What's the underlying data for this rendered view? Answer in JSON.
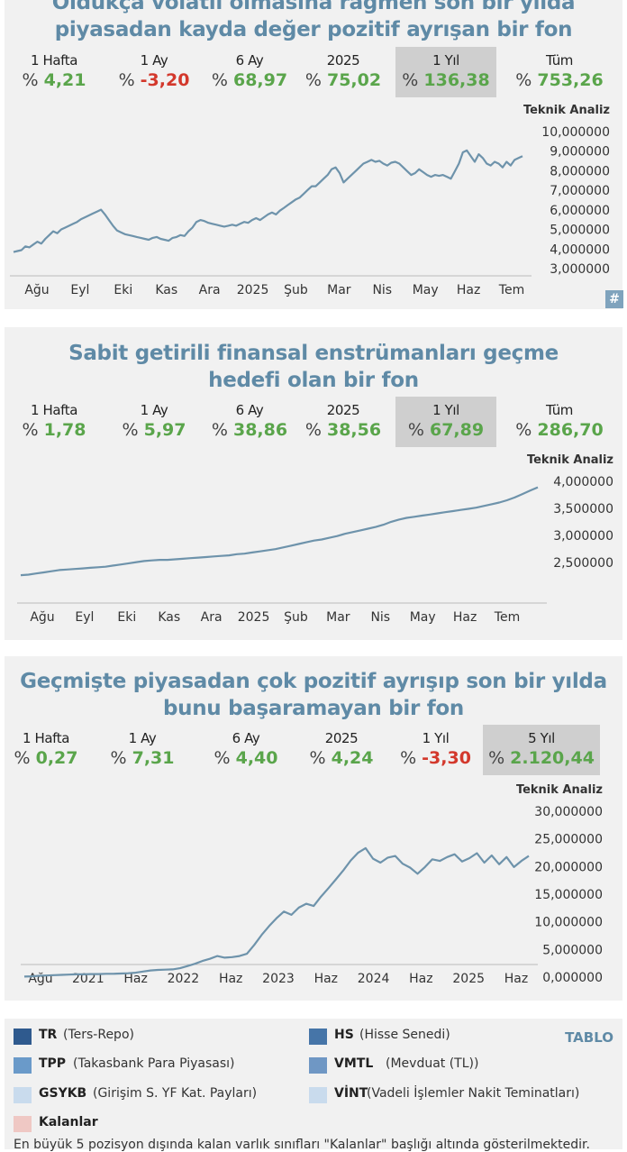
{
  "panels": [
    {
      "title_lines": [
        "Oldukça volatil olmasına rağmen son bir yılda",
        "piyasadan kayda değer pozitif ayrışan bir fon"
      ],
      "stats": [
        {
          "label": "1 Hafta",
          "pct": "%",
          "value": "4,21",
          "tone": "pos",
          "highlight": false
        },
        {
          "label": "1 Ay",
          "pct": "%",
          "value": "-3,20",
          "tone": "neg",
          "highlight": false
        },
        {
          "label": "6 Ay",
          "pct": "%",
          "value": "68,97",
          "tone": "pos",
          "highlight": false
        },
        {
          "label": "2025",
          "pct": "%",
          "value": "75,02",
          "tone": "pos",
          "highlight": false
        },
        {
          "label": "1 Yıl",
          "pct": "%",
          "value": "136,38",
          "tone": "pos",
          "highlight": true
        },
        {
          "label": "Tüm",
          "pct": "%",
          "value": "753,26",
          "tone": "pos",
          "highlight": false
        }
      ],
      "badge": "#"
    },
    {
      "title_lines": [
        "Sabit getirili finansal enstrümanları geçme",
        "hedefi olan bir fon"
      ],
      "stats": [
        {
          "label": "1 Hafta",
          "pct": "%",
          "value": "1,78",
          "tone": "pos",
          "highlight": false
        },
        {
          "label": "1 Ay",
          "pct": "%",
          "value": "5,97",
          "tone": "pos",
          "highlight": false
        },
        {
          "label": "6 Ay",
          "pct": "%",
          "value": "38,86",
          "tone": "pos",
          "highlight": false
        },
        {
          "label": "2025",
          "pct": "%",
          "value": "38,56",
          "tone": "pos",
          "highlight": false
        },
        {
          "label": "1 Yıl",
          "pct": "%",
          "value": "67,89",
          "tone": "pos",
          "highlight": true
        },
        {
          "label": "Tüm",
          "pct": "%",
          "value": "286,70",
          "tone": "pos",
          "highlight": false
        }
      ]
    },
    {
      "title_lines": [
        "Geçmişte piyasadan çok pozitif ayrışıp son bir yılda",
        "bunu başaramayan bir fon"
      ],
      "stats": [
        {
          "label": "1 Hafta",
          "pct": "%",
          "value": "0,27",
          "tone": "pos",
          "highlight": false
        },
        {
          "label": "1 Ay",
          "pct": "%",
          "value": "7,31",
          "tone": "pos",
          "highlight": false
        },
        {
          "label": "6 Ay",
          "pct": "%",
          "value": "4,40",
          "tone": "pos",
          "highlight": false
        },
        {
          "label": "2025",
          "pct": "%",
          "value": "4,24",
          "tone": "pos",
          "highlight": false
        },
        {
          "label": "1 Yıl",
          "pct": "%",
          "value": "-3,30",
          "tone": "neg",
          "highlight": false
        },
        {
          "label": "5 Yıl",
          "pct": "%",
          "value": "2.120,44",
          "tone": "pos",
          "highlight": true
        }
      ]
    }
  ],
  "colors": {
    "line": "#6e93ab",
    "title": "#5f8aa6",
    "positive": "#5aa54b",
    "negative": "#d3382c",
    "panel_bg": "#f1f1f1",
    "highlight": "#cfcfcf"
  },
  "chart_data": [
    {
      "type": "line",
      "title": "",
      "axis_title": "Teknik Analiz",
      "x_labels": [
        "Ağu",
        "Eyl",
        "Eki",
        "Kas",
        "Ara",
        "2025",
        "Şub",
        "Mar",
        "Nis",
        "May",
        "Haz",
        "Tem"
      ],
      "y_ticks": [
        "10,000000",
        "9,000000",
        "8,000000",
        "7,000000",
        "6,000000",
        "5,000000",
        "4,000000",
        "3,000000"
      ],
      "ylim": [
        3,
        10
      ],
      "grid": false,
      "series": [
        {
          "values": [
            3.5,
            3.55,
            3.6,
            3.8,
            3.75,
            3.9,
            4.05,
            3.95,
            4.2,
            4.4,
            4.6,
            4.5,
            4.7,
            4.8,
            4.9,
            5.0,
            5.1,
            5.25,
            5.35,
            5.45,
            5.55,
            5.65,
            5.75,
            5.5,
            5.2,
            4.9,
            4.65,
            4.55,
            4.45,
            4.4,
            4.35,
            4.3,
            4.25,
            4.2,
            4.15,
            4.25,
            4.3,
            4.2,
            4.15,
            4.1,
            4.25,
            4.3,
            4.4,
            4.35,
            4.6,
            4.8,
            5.1,
            5.2,
            5.15,
            5.05,
            5.0,
            4.95,
            4.9,
            4.85,
            4.9,
            4.95,
            4.9,
            5.0,
            5.1,
            5.05,
            5.2,
            5.3,
            5.2,
            5.35,
            5.5,
            5.6,
            5.5,
            5.7,
            5.85,
            6.0,
            6.15,
            6.3,
            6.4,
            6.6,
            6.8,
            7.0,
            7.0,
            7.2,
            7.4,
            7.6,
            7.9,
            8.0,
            7.7,
            7.2,
            7.4,
            7.6,
            7.8,
            8.0,
            8.2,
            8.3,
            8.4,
            8.3,
            8.35,
            8.2,
            8.1,
            8.25,
            8.3,
            8.2,
            8.0,
            7.8,
            7.6,
            7.7,
            7.9,
            7.75,
            7.6,
            7.5,
            7.6,
            7.55,
            7.6,
            7.5,
            7.4,
            7.8,
            8.2,
            8.8,
            8.9,
            8.6,
            8.3,
            8.7,
            8.5,
            8.2,
            8.1,
            8.3,
            8.2,
            8.0,
            8.3,
            8.1,
            8.4,
            8.5,
            8.6
          ]
        }
      ]
    },
    {
      "type": "line",
      "title": "",
      "axis_title": "Teknik Analiz",
      "x_labels": [
        "Ağu",
        "Eyl",
        "Eki",
        "Kas",
        "Ara",
        "2025",
        "Şub",
        "Mar",
        "Nis",
        "May",
        "Haz",
        "Tem"
      ],
      "y_ticks": [
        "4,000000",
        "3,500000",
        "3,000000",
        "2,500000"
      ],
      "ylim": [
        2.3,
        4.0
      ],
      "grid": false,
      "series": [
        {
          "values": [
            2.33,
            2.34,
            2.36,
            2.38,
            2.4,
            2.42,
            2.43,
            2.44,
            2.45,
            2.46,
            2.47,
            2.48,
            2.5,
            2.52,
            2.54,
            2.56,
            2.58,
            2.59,
            2.6,
            2.6,
            2.61,
            2.62,
            2.63,
            2.64,
            2.65,
            2.66,
            2.67,
            2.68,
            2.7,
            2.71,
            2.73,
            2.75,
            2.77,
            2.79,
            2.82,
            2.85,
            2.88,
            2.91,
            2.94,
            2.96,
            2.99,
            3.02,
            3.06,
            3.09,
            3.12,
            3.15,
            3.18,
            3.22,
            3.27,
            3.31,
            3.34,
            3.36,
            3.38,
            3.4,
            3.42,
            3.44,
            3.46,
            3.48,
            3.5,
            3.52,
            3.55,
            3.58,
            3.61,
            3.65,
            3.7,
            3.76,
            3.82,
            3.88
          ]
        }
      ]
    },
    {
      "type": "line",
      "title": "",
      "axis_title": "Teknik Analiz",
      "x_labels": [
        "Ağu",
        "2021",
        "Haz",
        "2022",
        "Haz",
        "2023",
        "Haz",
        "2024",
        "Haz",
        "2025",
        "Haz"
      ],
      "y_ticks": [
        "30,000000",
        "25,000000",
        "20,000000",
        "15,000000",
        "10,000000",
        "5,000000",
        "0,000000"
      ],
      "ylim": [
        0,
        30
      ],
      "grid": false,
      "series": [
        {
          "values": [
            0.1,
            0.15,
            0.25,
            0.3,
            0.35,
            0.4,
            0.45,
            0.5,
            0.5,
            0.55,
            0.55,
            0.6,
            0.6,
            0.65,
            0.7,
            0.8,
            1.0,
            1.2,
            1.3,
            1.35,
            1.4,
            1.6,
            2.0,
            2.4,
            2.9,
            3.3,
            3.8,
            3.5,
            3.6,
            3.8,
            4.2,
            5.8,
            7.6,
            9.2,
            10.6,
            11.8,
            11.2,
            12.5,
            13.2,
            12.8,
            14.5,
            16.0,
            17.6,
            19.2,
            21.0,
            22.4,
            23.2,
            21.3,
            20.6,
            21.5,
            21.8,
            20.4,
            19.7,
            18.6,
            19.8,
            21.2,
            20.9,
            21.6,
            22.1,
            20.8,
            21.4,
            22.3,
            20.6,
            21.9,
            20.3,
            21.6,
            19.8,
            20.9,
            21.8
          ]
        }
      ]
    }
  ],
  "legend": {
    "tag": "TABLO",
    "items": [
      {
        "code": "TR",
        "desc": "(Ters-Repo)",
        "color": "#2f5a8e"
      },
      {
        "code": "HS",
        "desc": "(Hisse Senedi)",
        "color": "#4675a8"
      },
      {
        "code": "TPP",
        "desc": "(Takasbank Para Piyasası)",
        "color": "#6a9ac9"
      },
      {
        "code": "VMTL",
        "desc": "(Mevduat (TL))",
        "color": "#6f97c4"
      },
      {
        "code": "GSYKB",
        "desc": "(Girişim S. YF Kat. Payları)",
        "color": "#c9dbed"
      },
      {
        "code": "VİNT",
        "desc": "(Vadeli İşlemler Nakit Teminatları)",
        "color": "#c9dbed"
      },
      {
        "code": "Kalanlar",
        "desc": "",
        "color": "#efc8c4"
      }
    ],
    "note": "En büyük 5 pozisyon dışında kalan varlık sınıfları \"Kalanlar\" başlığı altında gösterilmektedir."
  }
}
